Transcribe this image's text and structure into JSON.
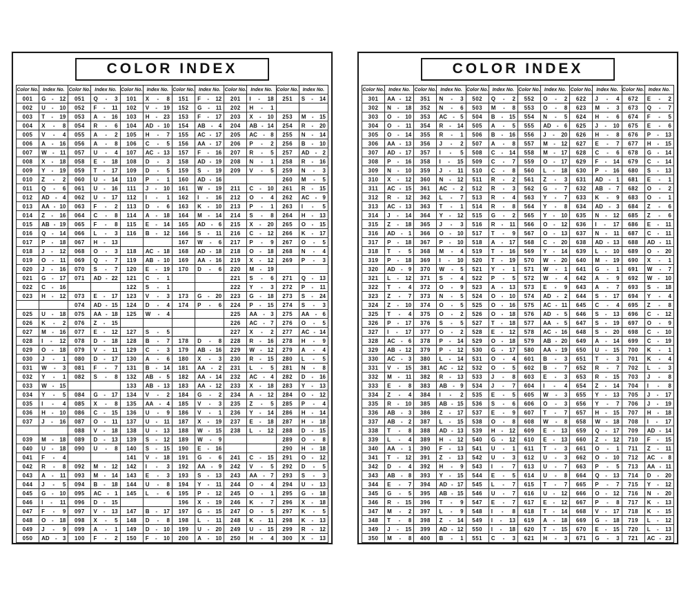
{
  "colors": {
    "paper": "#ffffff",
    "ink": "#1a1a1a"
  },
  "pages": [
    {
      "title": "COLOR INDEX",
      "header": {
        "color": "Color No.",
        "index": "Index No."
      },
      "columns": [
        {
          "entries": [
            "001|G|12",
            "002|U|10",
            "003|T|19",
            "004|X|8",
            "005|V|4",
            "006|A|16",
            "007|W|11",
            "008|X|18",
            "009|Y|19",
            "010|Z|2",
            "011|Q|6",
            "012|AD|4",
            "013|AA|10",
            "014|Z|16",
            "015|AB|19",
            "016|Q|14",
            "017|P|18",
            "018|J|12",
            "019|O|11",
            "020|J|16",
            "021|G|17",
            "022|C|16",
            "023|H|12",
            "",
            "025|U|18",
            "026|K|2",
            "027|M|16",
            "028|I|12",
            "029|O|18",
            "030|J|1",
            "031|W|3",
            "032|Y|1",
            "033|W|15",
            "034|Y|5",
            "035|I|4",
            "036|H|10",
            "037|J|16",
            "",
            "039|M|18",
            "040|U|18",
            "041|F|4",
            "042|R|8",
            "043|A|11",
            "044|J|5",
            "045|G|10",
            "046|I|11",
            "047|F|9",
            "048|O|18",
            "049|J|9",
            "050|AD|3"
          ]
        },
        {
          "entries": [
            "051|Q|3",
            "052|F|11",
            "053|A|16",
            "054|R|6",
            "055|A|2",
            "056|A|8",
            "057|U|4",
            "058|E|18",
            "059|T|17",
            "060|U|14",
            "061|U|16",
            "062|U|17",
            "063|F|2",
            "064|C|8",
            "065|F|8",
            "066|L|3",
            "067|H|13",
            "068|O|3",
            "069|Q|7",
            "070|S|7",
            "071|AD|22",
            "",
            "073|E|17",
            "074|AD|15",
            "075|AA|18",
            "076|Z|15",
            "077|E|12",
            "078|D|18",
            "079|V|11",
            "080|D|17",
            "081|F|7",
            "082|S|8",
            "",
            "084|G|17",
            "085|X|8",
            "086|C|15",
            "087|O|11",
            "088|V|18",
            "089|D|13",
            "090|U|8",
            "",
            "092|M|12",
            "093|M|14",
            "094|B|18",
            "095|AC|1",
            "096|D|15",
            "097|V|13",
            "098|X|5",
            "099|A|1",
            "100|F|2"
          ]
        },
        {
          "entries": [
            "101|X|8",
            "102|V|19",
            "103|H|23",
            "104|AD|10",
            "105|H|7",
            "106|C|5",
            "107|AC|13",
            "108|D|3",
            "109|D|5",
            "110|P|1",
            "111|J|10",
            "112|I|1",
            "113|D|6",
            "114|A|18",
            "115|E|14",
            "116|B|12",
            "",
            "118|AC|18",
            "119|AB|10",
            "120|E|19",
            "121|C|1",
            "122|S|1",
            "123|V|3",
            "124|D|4",
            "125|W|4",
            "",
            "127|S|5",
            "128|B|7",
            "129|C|3",
            "130|A|6",
            "131|B|14",
            "132|AB|5",
            "133|AB|13",
            "134|V|2",
            "135|AA|4",
            "136|U|9",
            "137|U|11",
            "138|U|13",
            "139|S|12",
            "140|S|15",
            "141|V|18",
            "142|I|3",
            "143|E|3",
            "144|U|8",
            "145|L|6",
            "",
            "147|B|17",
            "148|D|8",
            "149|D|10",
            "150|F|10"
          ]
        },
        {
          "entries": [
            "151|F|12",
            "152|G|11",
            "153|F|17",
            "154|AB|4",
            "155|AC|17",
            "156|AA|17",
            "157|F|16",
            "158|AD|19",
            "159|S|19",
            "160|AD|16",
            "161|W|19",
            "162|I|16",
            "163|K|10",
            "164|M|14",
            "165|AD|6",
            "166|S|11",
            "167|W|6",
            "168|AD|18",
            "169|AA|16",
            "170|D|6",
            "",
            "",
            "173|G|20",
            "174|P|6",
            "",
            "",
            "",
            "178|D|8",
            "179|AB|16",
            "180|X|3",
            "181|AA|2",
            "182|AA|14",
            "183|AA|12",
            "184|G|2",
            "185|V|3",
            "186|V|1",
            "187|X|19",
            "188|W|15",
            "189|W|9",
            "190|E|16",
            "191|G|6",
            "192|AA|9",
            "193|S|13",
            "194|Y|11",
            "195|P|12",
            "196|X|19",
            "197|G|15",
            "198|L|11",
            "199|U|20",
            "200|A|10"
          ]
        },
        {
          "entries": [
            "201|I|18",
            "202|H|1",
            "203|X|10",
            "204|AB|14",
            "205|AC|8",
            "206|P|2",
            "207|R|5",
            "208|N|1",
            "209|V|5",
            "",
            "211|C|10",
            "212|O|4",
            "213|P|1",
            "214|S|8",
            "215|X|20",
            "216|C|12",
            "217|P|9",
            "218|O|18",
            "219|X|12",
            "220|M|19",
            "221|S|6",
            "222|Y|3",
            "223|G|18",
            "224|P|15",
            "225|AA|3",
            "226|AC|7",
            "227|X|2",
            "228|R|16",
            "229|W|12",
            "230|R|15",
            "231|L|5",
            "232|AC|4",
            "233|X|18",
            "234|A|12",
            "235|Z|5",
            "236|Y|14",
            "237|E|18",
            "238|L|12",
            "",
            "",
            "241|C|15",
            "242|V|5",
            "243|AA|7",
            "244|O|4",
            "245|O|1",
            "246|K|7",
            "247|O|5",
            "248|K|11",
            "249|U|15",
            "250|H|4"
          ]
        },
        {
          "entries": [
            "251|S|14",
            "",
            "253|M|15",
            "254|R|20",
            "255|N|14",
            "256|B|10",
            "257|AD|2",
            "258|R|16",
            "259|N|3",
            "260|M|5",
            "261|R|15",
            "262|AC|9",
            "263|I|5",
            "264|H|13",
            "265|O|15",
            "266|K|17",
            "267|O|5",
            "268|N|4",
            "269|P|3",
            "",
            "271|Q|13",
            "272|P|11",
            "273|S|24",
            "274|S|3",
            "275|AA|6",
            "276|O|5",
            "277|AC|14",
            "278|H|9",
            "279|A|4",
            "280|L|5",
            "281|N|8",
            "282|D|16",
            "283|Y|13",
            "284|O|12",
            "285|P|4",
            "286|H|14",
            "287|H|18",
            "288|D|15",
            "289|O|8",
            "290|H|18",
            "291|O|12",
            "292|D|5",
            "293|S|3",
            "294|U|13",
            "295|G|18",
            "296|X|18",
            "297|K|5",
            "298|K|13",
            "299|R|12",
            "300|X|13"
          ]
        }
      ]
    },
    {
      "title": "COLOR INDEX",
      "header": {
        "color": "Color No.",
        "index": "Index No."
      },
      "columns": [
        {
          "entries": [
            "301|AA|12",
            "302|N|18",
            "303|O|10",
            "304|O|11",
            "305|O|14",
            "306|AA|13",
            "307|AD|17",
            "308|P|16",
            "309|N|10",
            "310|X|12",
            "311|AC|15",
            "312|R|12",
            "313|AC|13",
            "314|J|14",
            "315|Z|18",
            "316|AD|1",
            "317|P|18",
            "318|T|5",
            "319|P|18",
            "320|AD|9",
            "321|L|12",
            "322|T|4",
            "323|Z|7",
            "324|Z|10",
            "325|T|4",
            "326|P|17",
            "327|I|17",
            "328|AC|6",
            "329|AB|12",
            "330|AC|3",
            "331|V|15",
            "332|M|11",
            "333|E|8",
            "334|Z|4",
            "335|R|10",
            "336|AB|3",
            "337|AB|2",
            "338|T|8",
            "339|L|4",
            "340|AA|1",
            "341|T|12",
            "342|D|4",
            "343|AB|8",
            "344|E|7",
            "345|G|5",
            "346|R|15",
            "347|M|2",
            "348|T|8",
            "349|J|15",
            "350|M|8"
          ]
        },
        {
          "entries": [
            "351|N|3",
            "352|N|6",
            "353|AC|5",
            "354|R|14",
            "355|R|1",
            "356|J|2",
            "357|I|5",
            "358|I|15",
            "359|J|11",
            "360|N|12",
            "361|AC|2",
            "362|L|7",
            "363|T|1",
            "364|Y|12",
            "365|J|3",
            "366|O|10",
            "367|P|10",
            "368|M|4",
            "369|I|10",
            "370|W|5",
            "371|S|4",
            "372|O|9",
            "373|N|5",
            "374|O|5",
            "375|O|2",
            "376|S|5",
            "377|O|2",
            "378|P|14",
            "379|P|12",
            "380|L|14",
            "381|AC|12",
            "382|R|13",
            "383|AB|9",
            "384|I|2",
            "385|AB|15",
            "386|Z|17",
            "387|L|15",
            "388|AD|13",
            "389|H|12",
            "390|F|13",
            "391|Z|13",
            "392|H|9",
            "393|Y|15",
            "394|AD|17",
            "395|AB|15",
            "396|T|9",
            "397|L|9",
            "398|Z|14",
            "399|AD|12",
            "400|B|1"
          ]
        },
        {
          "entries": [
            "502|Q|2",
            "503|M|8",
            "504|B|15",
            "505|A|5",
            "506|B|16",
            "507|A|8",
            "508|C|14",
            "509|C|7",
            "510|C|8",
            "511|R|2",
            "512|R|3",
            "513|R|4",
            "514|R|8",
            "515|G|2",
            "516|R|11",
            "517|T|9",
            "518|A|17",
            "519|T|16",
            "520|T|19",
            "521|Y|1",
            "522|P|5",
            "523|A|13",
            "524|O|10",
            "525|O|16",
            "526|O|18",
            "527|T|18",
            "528|E|12",
            "529|O|18",
            "530|G|17",
            "531|O|4",
            "532|O|5",
            "533|J|8",
            "534|J|7",
            "535|E|5",
            "536|S|6",
            "537|E|9",
            "538|O|8",
            "539|H|12",
            "540|G|12",
            "541|U|1",
            "542|U|3",
            "543|I|7",
            "544|E|5",
            "545|L|7",
            "546|U|7",
            "547|E|7",
            "548|I|8",
            "549|I|13",
            "550|I|18",
            "551|C|3"
          ]
        },
        {
          "entries": [
            "552|O|2",
            "553|O|8",
            "554|N|5",
            "555|AD|6",
            "556|J|20",
            "557|M|12",
            "558|M|17",
            "559|O|17",
            "560|L|18",
            "561|Z|3",
            "562|G|7",
            "563|Y|7",
            "564|Y|8",
            "565|Y|10",
            "566|O|12",
            "567|O|13",
            "568|C|20",
            "569|Y|14",
            "570|W|20",
            "571|W|1",
            "572|W|4",
            "573|E|9",
            "574|AD|2",
            "575|AC|11",
            "576|AD|5",
            "577|AA|5",
            "578|AC|16",
            "579|AB|20",
            "580|AA|19",
            "601|B|3",
            "602|B|7",
            "603|E|3",
            "604|I|4",
            "605|W|3",
            "606|O|3",
            "607|T|7",
            "608|W|8",
            "609|E|13",
            "610|E|13",
            "611|T|3",
            "612|U|3",
            "613|U|7",
            "614|U|8",
            "615|T|7",
            "616|U|12",
            "617|E|12",
            "618|T|14",
            "619|A|18",
            "620|T|15",
            "621|H|3"
          ]
        },
        {
          "entries": [
            "622|J|4",
            "623|M|3",
            "624|H|6",
            "625|J|10",
            "626|H|8",
            "627|E|7",
            "628|C|6",
            "629|F|14",
            "630|P|16",
            "631|AD|1",
            "632|AB|7",
            "633|K|9",
            "634|AD|3",
            "635|N|12",
            "636|I|17",
            "637|N|11",
            "638|AD|13",
            "639|L|10",
            "640|M|19",
            "641|G|1",
            "642|A|9",
            "643|A|7",
            "644|S|17",
            "645|C|4",
            "646|S|13",
            "647|S|19",
            "648|S|20",
            "649|A|14",
            "650|U|15",
            "651|T|3",
            "652|R|7",
            "653|R|15",
            "654|Z|14",
            "655|Y|13",
            "656|Y|7",
            "657|H|15",
            "658|W|18",
            "659|Q|17",
            "660|Z|12",
            "661|O|1",
            "662|O|10",
            "663|P|5",
            "664|Q|13",
            "665|P|7",
            "666|O|12",
            "667|P|8",
            "668|V|17",
            "669|G|18",
            "670|E|15",
            "671|G|3"
          ]
        },
        {
          "entries": [
            "672|E|2",
            "673|Q|7",
            "674|F|5",
            "675|E|6",
            "676|P|13",
            "677|H|15",
            "678|G|14",
            "679|C|14",
            "680|S|13",
            "681|E|1",
            "682|O|2",
            "683|O|1",
            "684|Z|6",
            "685|Z|6",
            "686|E|11",
            "687|C|11",
            "688|AD|11",
            "689|O|20",
            "690|X|1",
            "691|W|7",
            "692|W|10",
            "693|S|18",
            "694|Y|4",
            "695|Z|8",
            "696|C|12",
            "697|O|9",
            "698|C|10",
            "699|C|19",
            "700|K|1",
            "701|K|4",
            "702|L|3",
            "703|J|8",
            "704|I|8",
            "705|J|17",
            "706|J|19",
            "707|H|18",
            "708|I|17",
            "709|AD|14",
            "710|F|15",
            "711|Z|11",
            "712|AC|8",
            "713|AA|11",
            "714|D|20",
            "715|Y|12",
            "716|N|20",
            "717|K|13",
            "718|K|15",
            "719|L|12",
            "720|L|13",
            "721|AC|23"
          ]
        }
      ]
    }
  ]
}
